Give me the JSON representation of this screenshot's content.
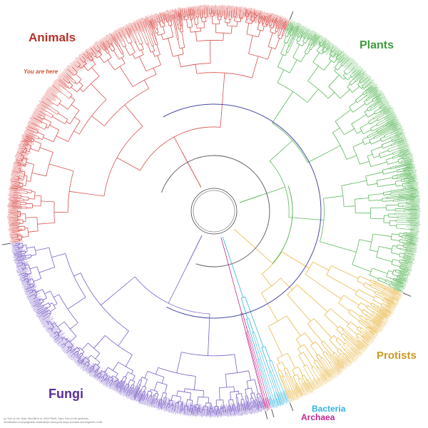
{
  "labels": {
    "animals": "Animals",
    "plants": "Plants",
    "protists": "Protists",
    "fungi": "Fungi",
    "bacteria": "Bacteria",
    "archaea": "Archaea",
    "you_are_here": "You are here"
  },
  "colors": {
    "animals": "#d9534f",
    "animals_label": "#b5322c",
    "plants": "#5cb85c",
    "plants_label": "#3f9a3f",
    "protists": "#e8b84a",
    "protists_label": "#c99a22",
    "fungi": "#7b5fc7",
    "fungi_label": "#5a2d9a",
    "bacteria": "#2fb5e0",
    "archaea": "#c2288f",
    "root": "#4a4aa8",
    "you_are_here": "#cc5533"
  },
  "groups": [
    {
      "key": "animals",
      "share": 0.335
    },
    {
      "key": "plants",
      "share": 0.255
    },
    {
      "key": "protists",
      "share": 0.125
    },
    {
      "key": "bacteria",
      "share": 0.015
    },
    {
      "key": "archaea",
      "share": 0.005
    },
    {
      "key": "fungi",
      "share": 0.265
    }
  ],
  "credit_lines": [
    "(c) Tree of Life. Data: Hinchliff et al. 2015 PNAS; Open Tree of Life synthesis.",
    "Visualization of phylogenetic relationships among the major domains and kingdoms of life."
  ]
}
